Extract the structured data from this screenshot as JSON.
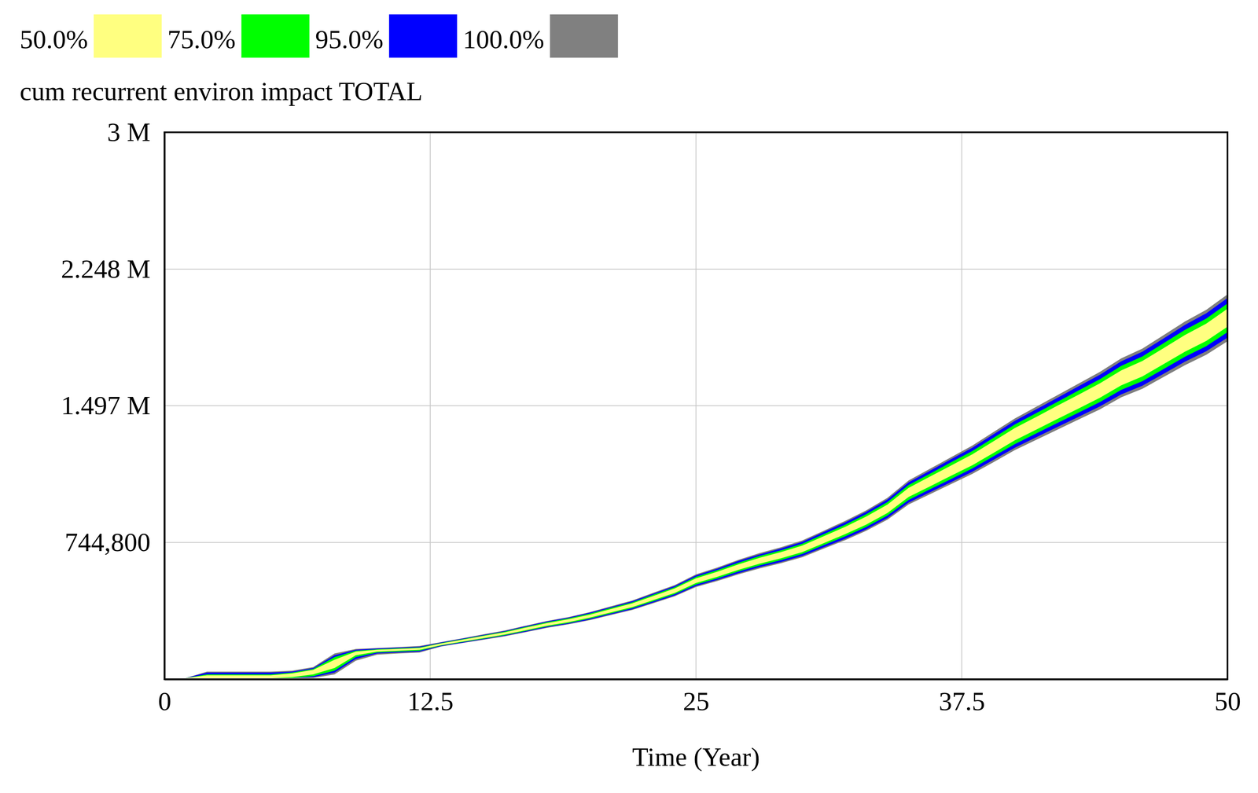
{
  "chart_data": {
    "type": "band",
    "title": "cum recurrent environ impact TOTAL",
    "xlabel": "Time (Year)",
    "legend": "top-left",
    "grid": true,
    "x": [
      0,
      1,
      2,
      3,
      4,
      5,
      6,
      7,
      8,
      9,
      10,
      11,
      12,
      13,
      14,
      15,
      16,
      17,
      18,
      19,
      20,
      21,
      22,
      23,
      24,
      25,
      26,
      27,
      28,
      29,
      30,
      31,
      32,
      33,
      34,
      35,
      36,
      37,
      38,
      39,
      40,
      41,
      42,
      43,
      44,
      45,
      46,
      47,
      48,
      49,
      50
    ],
    "xlim": [
      0,
      50
    ],
    "xticks": [
      0,
      12.5,
      25,
      37.5,
      50
    ],
    "ylim": [
      -6800,
      3000000
    ],
    "yticks": [
      {
        "value": 744800,
        "label": "744,800"
      },
      {
        "value": 1497000,
        "label": "1.497 M"
      },
      {
        "value": 2248000,
        "label": "2.248 M"
      },
      {
        "value": 3000000,
        "label": "3 M"
      }
    ],
    "series": [
      {
        "name": "50.0%",
        "color": "#ffff80",
        "lower": [
          0,
          0,
          0,
          0,
          0,
          0,
          5000,
          20000,
          55000,
          125000,
          145000,
          150000,
          155000,
          180000,
          200000,
          219000,
          239000,
          263000,
          288000,
          307000,
          332000,
          361000,
          390000,
          429000,
          468000,
          522000,
          556000,
          595000,
          629000,
          658000,
          692000,
          741000,
          790000,
          843000,
          907000,
          995000,
          1053000,
          1112000,
          1170000,
          1238000,
          1307000,
          1365000,
          1424000,
          1482000,
          1541000,
          1609000,
          1658000,
          1726000,
          1794000,
          1853000,
          1931000
        ],
        "upper": [
          0,
          0,
          15000,
          15000,
          15000,
          15000,
          25000,
          45000,
          100000,
          145000,
          155000,
          160000,
          165000,
          190000,
          210000,
          231000,
          251000,
          277000,
          302000,
          323000,
          348000,
          379000,
          410000,
          451000,
          492000,
          548000,
          584000,
          625000,
          661000,
          692000,
          728000,
          779000,
          830000,
          887000,
          953000,
          1045000,
          1107000,
          1168000,
          1230000,
          1302000,
          1374000,
          1435000,
          1497000,
          1558000,
          1620000,
          1691000,
          1743000,
          1814000,
          1886000,
          1948000,
          2030000
        ]
      },
      {
        "name": "75.0%",
        "color": "#00ff00",
        "lower": [
          0,
          0,
          0,
          0,
          0,
          0,
          0,
          10000,
          40000,
          115000,
          140000,
          145000,
          150000,
          178000,
          197000,
          216000,
          235000,
          259000,
          283000,
          302000,
          326000,
          355000,
          384000,
          422000,
          461000,
          514000,
          547000,
          586000,
          619000,
          648000,
          682000,
          730000,
          778000,
          830000,
          893000,
          979000,
          1037000,
          1094000,
          1152000,
          1219000,
          1286000,
          1344000,
          1402000,
          1459000,
          1517000,
          1584000,
          1632000,
          1699000,
          1766000,
          1824000,
          1901000
        ],
        "upper": [
          0,
          0,
          20000,
          20000,
          20000,
          20000,
          30000,
          50000,
          115000,
          150000,
          158000,
          163000,
          168000,
          192000,
          213000,
          234000,
          255000,
          281000,
          307000,
          328000,
          354000,
          385000,
          416000,
          458000,
          499000,
          556000,
          593000,
          634000,
          671000,
          702000,
          738000,
          790000,
          842000,
          900000,
          967000,
          1061000,
          1123000,
          1186000,
          1248000,
          1321000,
          1394000,
          1456000,
          1518000,
          1581000,
          1643000,
          1716000,
          1768000,
          1841000,
          1914000,
          1976000,
          2059000
        ]
      },
      {
        "name": "95.0%",
        "color": "#0000ff",
        "lower": [
          0,
          0,
          0,
          0,
          0,
          0,
          0,
          5000,
          30000,
          105000,
          135000,
          140000,
          145000,
          175000,
          194000,
          213000,
          232000,
          255000,
          279000,
          298000,
          321000,
          350000,
          378000,
          416000,
          454000,
          506000,
          539000,
          576000,
          610000,
          638000,
          671000,
          718000,
          765000,
          817000,
          879000,
          964000,
          1021000,
          1077000,
          1134000,
          1200000,
          1266000,
          1323000,
          1380000,
          1436000,
          1493000,
          1559000,
          1607000,
          1673000,
          1739000,
          1796000,
          1871000
        ],
        "upper": [
          0,
          0,
          30000,
          30000,
          30000,
          30000,
          35000,
          55000,
          125000,
          155000,
          162000,
          167000,
          172000,
          195000,
          216000,
          237000,
          258000,
          285000,
          311000,
          332000,
          359000,
          390000,
          422000,
          464000,
          506000,
          564000,
          601000,
          644000,
          680000,
          712000,
          749000,
          802000,
          855000,
          913000,
          981000,
          1076000,
          1139000,
          1203000,
          1266000,
          1340000,
          1414000,
          1477000,
          1540000,
          1604000,
          1667000,
          1741000,
          1794000,
          1867000,
          1941000,
          2005000,
          2089000
        ]
      },
      {
        "name": "100.0%",
        "color": "#808080",
        "lower": [
          0,
          0,
          0,
          0,
          0,
          0,
          0,
          0,
          20000,
          95000,
          128000,
          135000,
          140000,
          173000,
          192000,
          210000,
          229000,
          252000,
          276000,
          295000,
          318000,
          346000,
          374000,
          411000,
          449000,
          500000,
          533000,
          570000,
          603000,
          631000,
          664000,
          711000,
          757000,
          809000,
          870000,
          954000,
          1010000,
          1066000,
          1122000,
          1187000,
          1253000,
          1309000,
          1365000,
          1421000,
          1477000,
          1543000,
          1590000,
          1655000,
          1720000,
          1777000,
          1851000
        ],
        "upper": [
          0,
          0,
          35000,
          35000,
          35000,
          35000,
          40000,
          60000,
          135000,
          160000,
          165000,
          170000,
          176000,
          197000,
          218000,
          240000,
          261000,
          288000,
          314000,
          335000,
          362000,
          394000,
          426000,
          469000,
          511000,
          570000,
          607000,
          650000,
          687000,
          719000,
          756000,
          809000,
          863000,
          921000,
          990000,
          1086000,
          1150000,
          1214000,
          1278000,
          1353000,
          1427000,
          1491000,
          1555000,
          1619000,
          1683000,
          1757000,
          1811000,
          1885000,
          1960000,
          2024000,
          2109000
        ]
      }
    ]
  }
}
